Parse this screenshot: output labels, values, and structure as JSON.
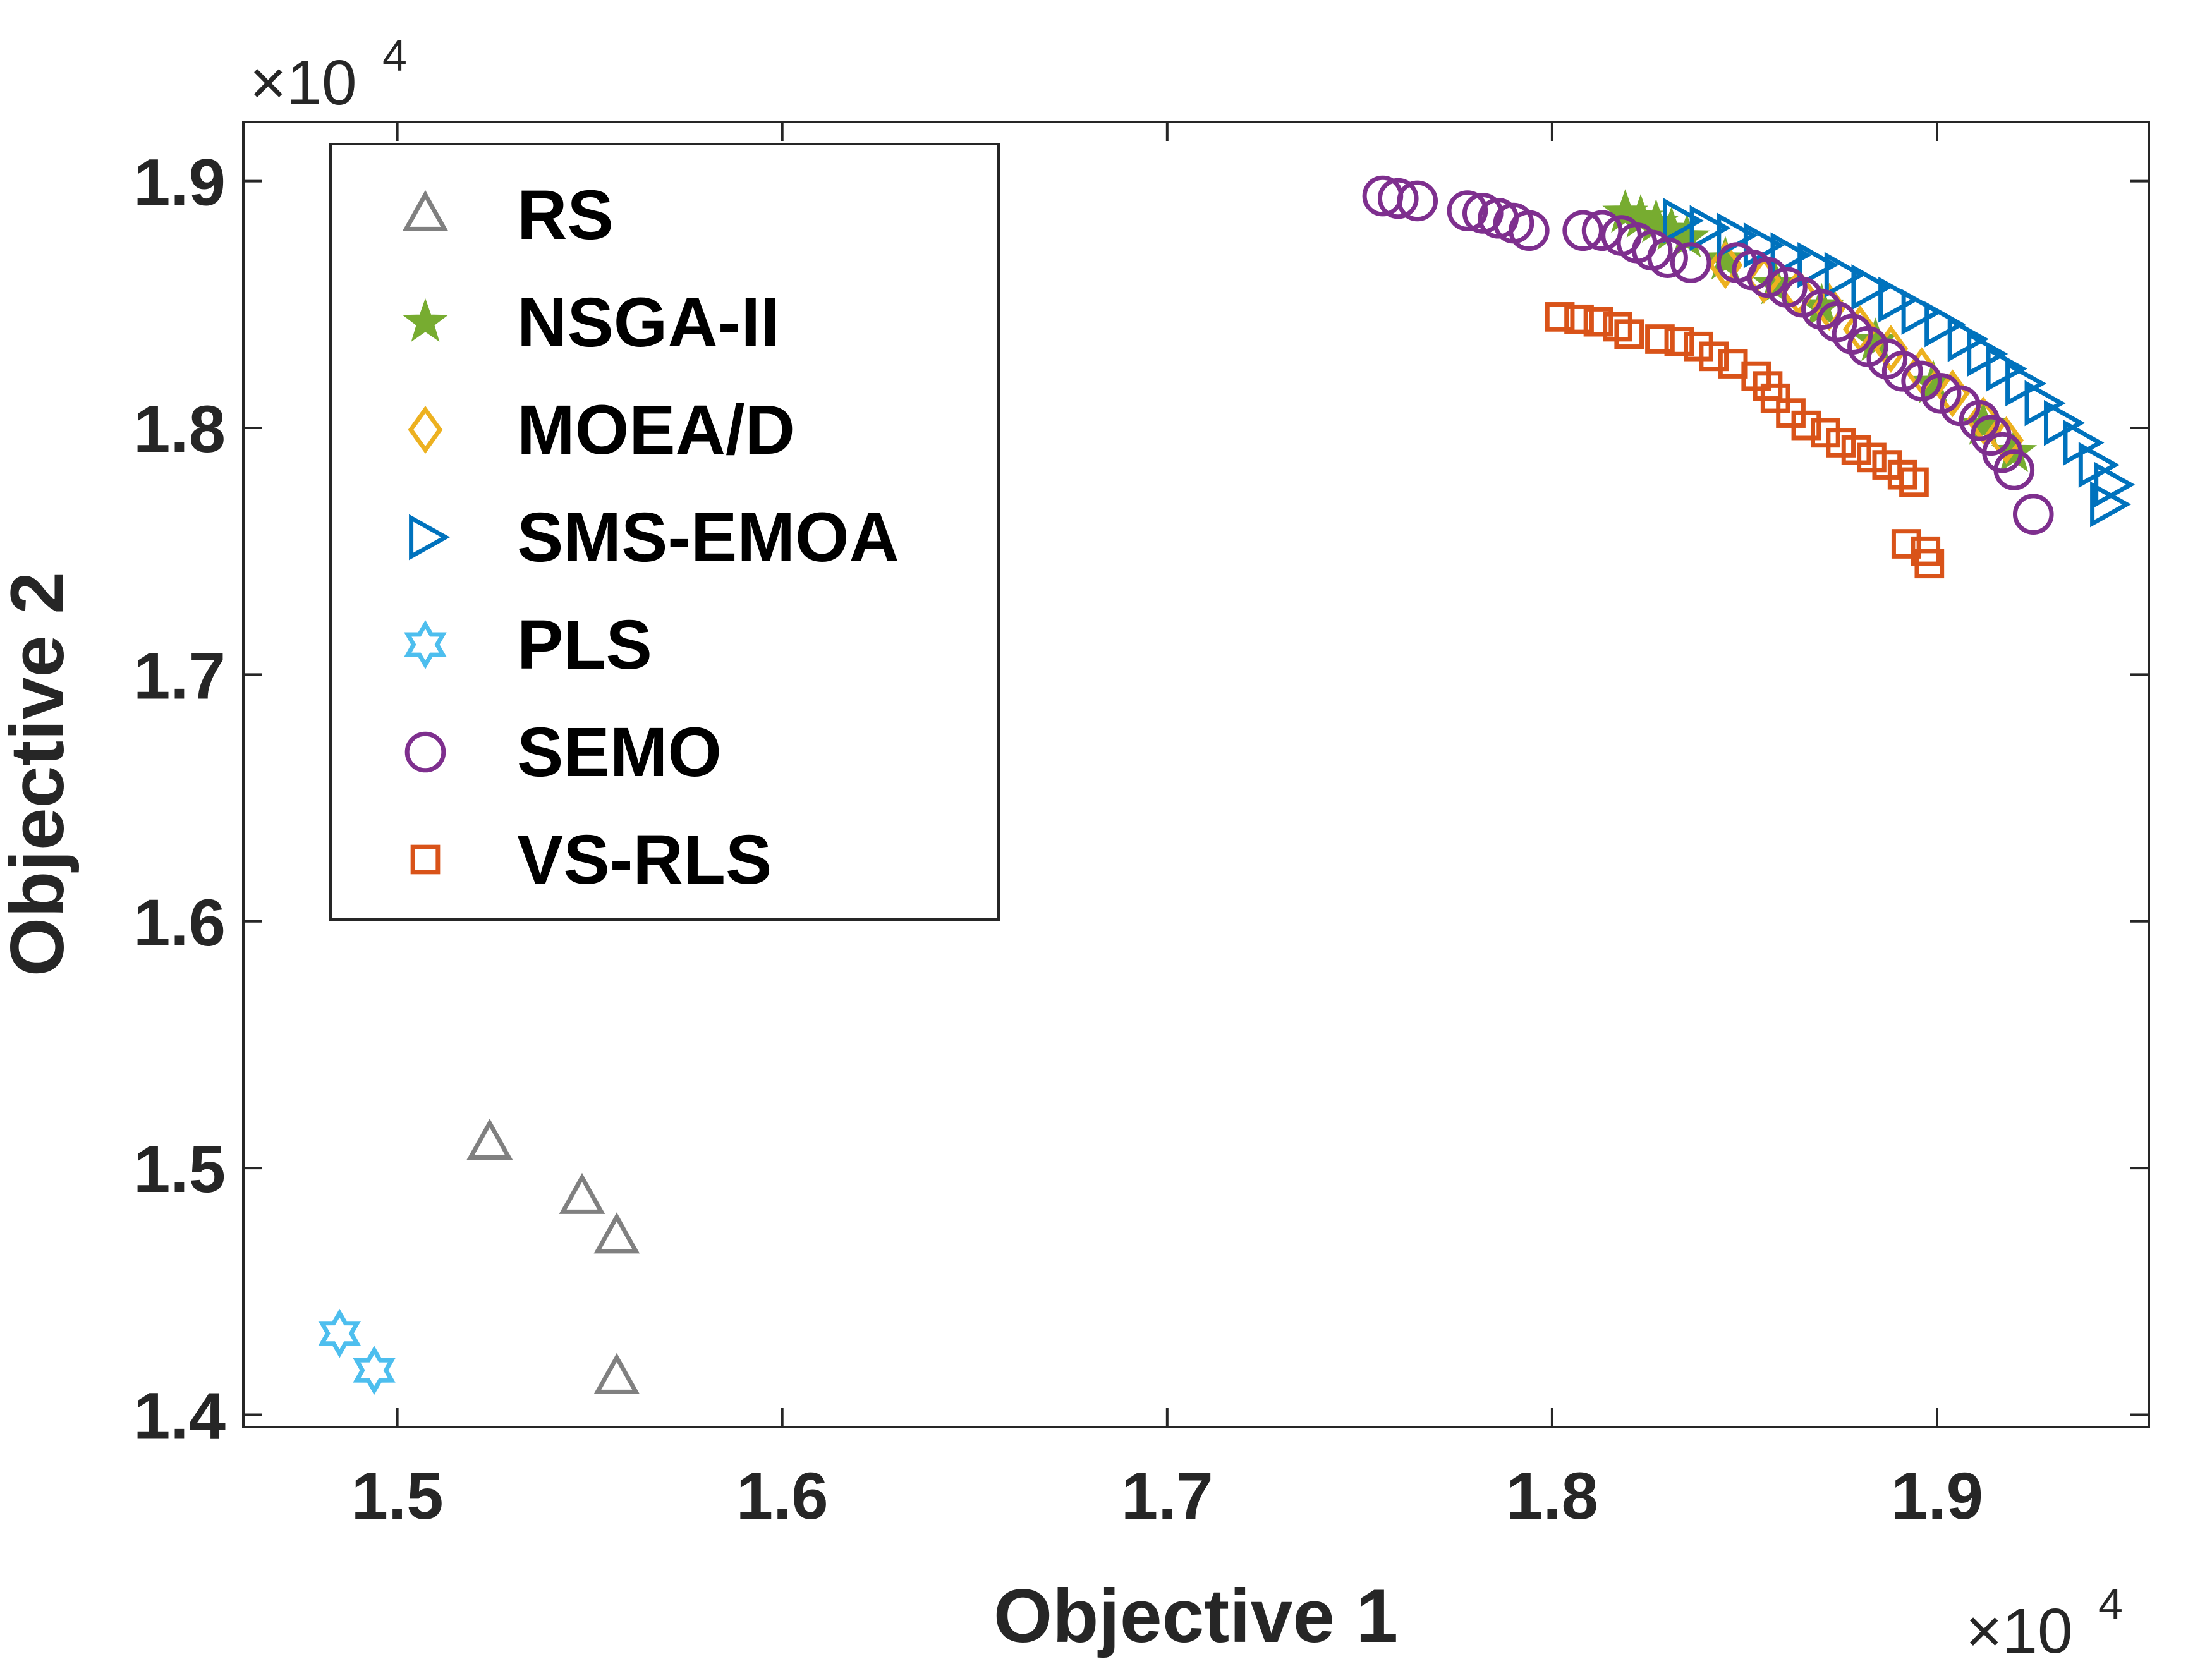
{
  "chart_data": {
    "type": "scatter",
    "xlabel": "Objective 1",
    "ylabel": "Objective 2",
    "x_multiplier": "×10",
    "x_multiplier_exp": "4",
    "y_multiplier": "×10",
    "y_multiplier_exp": "4",
    "xlim": [
      1.46,
      1.955
    ],
    "ylim": [
      1.395,
      1.924
    ],
    "xticks": [
      {
        "v": 1.5,
        "label": "1.5"
      },
      {
        "v": 1.6,
        "label": "1.6"
      },
      {
        "v": 1.7,
        "label": "1.7"
      },
      {
        "v": 1.8,
        "label": "1.8"
      },
      {
        "v": 1.9,
        "label": "1.9"
      }
    ],
    "yticks": [
      {
        "v": 1.4,
        "label": "1.4"
      },
      {
        "v": 1.5,
        "label": "1.5"
      },
      {
        "v": 1.6,
        "label": "1.6"
      },
      {
        "v": 1.7,
        "label": "1.7"
      },
      {
        "v": 1.8,
        "label": "1.8"
      },
      {
        "v": 1.9,
        "label": "1.9"
      }
    ],
    "grid": false,
    "legend_position": "top-left",
    "series": [
      {
        "name": "RS",
        "marker": "triangle-up",
        "color": "#808080",
        "points": [
          [
            1.524,
            1.51
          ],
          [
            1.548,
            1.488
          ],
          [
            1.557,
            1.472
          ],
          [
            1.557,
            1.415
          ]
        ]
      },
      {
        "name": "NSGA-II",
        "marker": "star",
        "color": "#77AC30",
        "points": [
          [
            1.819,
            1.887
          ],
          [
            1.823,
            1.885
          ],
          [
            1.827,
            1.883
          ],
          [
            1.831,
            1.88
          ],
          [
            1.835,
            1.877
          ],
          [
            1.845,
            1.868
          ],
          [
            1.858,
            1.858
          ],
          [
            1.87,
            1.849
          ],
          [
            1.884,
            1.835
          ],
          [
            1.899,
            1.818
          ],
          [
            1.912,
            1.801
          ],
          [
            1.92,
            1.79
          ]
        ]
      },
      {
        "name": "MOEA/D",
        "marker": "diamond",
        "color": "#EDB120",
        "points": [
          [
            1.845,
            1.866
          ],
          [
            1.855,
            1.86
          ],
          [
            1.864,
            1.855
          ],
          [
            1.872,
            1.849
          ],
          [
            1.88,
            1.84
          ],
          [
            1.888,
            1.832
          ],
          [
            1.896,
            1.823
          ],
          [
            1.904,
            1.814
          ],
          [
            1.912,
            1.803
          ],
          [
            1.918,
            1.795
          ]
        ]
      },
      {
        "name": "SMS-EMOA",
        "marker": "triangle-right",
        "color": "#0072BD",
        "points": [
          [
            1.833,
            1.884
          ],
          [
            1.84,
            1.881
          ],
          [
            1.847,
            1.878
          ],
          [
            1.854,
            1.874
          ],
          [
            1.861,
            1.87
          ],
          [
            1.868,
            1.866
          ],
          [
            1.875,
            1.862
          ],
          [
            1.882,
            1.857
          ],
          [
            1.889,
            1.852
          ],
          [
            1.895,
            1.847
          ],
          [
            1.901,
            1.842
          ],
          [
            1.907,
            1.836
          ],
          [
            1.912,
            1.83
          ],
          [
            1.917,
            1.824
          ],
          [
            1.922,
            1.818
          ],
          [
            1.927,
            1.81
          ],
          [
            1.932,
            1.802
          ],
          [
            1.937,
            1.794
          ],
          [
            1.941,
            1.785
          ],
          [
            1.945,
            1.777
          ],
          [
            1.944,
            1.769
          ]
        ]
      },
      {
        "name": "PLS",
        "marker": "hexagram",
        "color": "#4DBEEE",
        "points": [
          [
            1.485,
            1.433
          ],
          [
            1.494,
            1.418
          ]
        ]
      },
      {
        "name": "SEMO",
        "marker": "circle",
        "color": "#7E2F8E",
        "points": [
          [
            1.756,
            1.894
          ],
          [
            1.76,
            1.893
          ],
          [
            1.765,
            1.892
          ],
          [
            1.778,
            1.888
          ],
          [
            1.782,
            1.887
          ],
          [
            1.786,
            1.885
          ],
          [
            1.79,
            1.883
          ],
          [
            1.794,
            1.88
          ],
          [
            1.808,
            1.88
          ],
          [
            1.813,
            1.88
          ],
          [
            1.818,
            1.878
          ],
          [
            1.822,
            1.875
          ],
          [
            1.826,
            1.872
          ],
          [
            1.83,
            1.869
          ],
          [
            1.836,
            1.867
          ],
          [
            1.848,
            1.867
          ],
          [
            1.852,
            1.864
          ],
          [
            1.856,
            1.861
          ],
          [
            1.861,
            1.857
          ],
          [
            1.865,
            1.853
          ],
          [
            1.87,
            1.848
          ],
          [
            1.874,
            1.843
          ],
          [
            1.878,
            1.838
          ],
          [
            1.882,
            1.833
          ],
          [
            1.887,
            1.828
          ],
          [
            1.891,
            1.823
          ],
          [
            1.896,
            1.819
          ],
          [
            1.901,
            1.814
          ],
          [
            1.906,
            1.809
          ],
          [
            1.911,
            1.803
          ],
          [
            1.914,
            1.797
          ],
          [
            1.917,
            1.79
          ],
          [
            1.92,
            1.783
          ],
          [
            1.925,
            1.765
          ]
        ]
      },
      {
        "name": "VS-RLS",
        "marker": "square",
        "color": "#D95319",
        "points": [
          [
            1.802,
            1.845
          ],
          [
            1.807,
            1.844
          ],
          [
            1.812,
            1.843
          ],
          [
            1.817,
            1.841
          ],
          [
            1.82,
            1.838
          ],
          [
            1.828,
            1.836
          ],
          [
            1.833,
            1.835
          ],
          [
            1.838,
            1.833
          ],
          [
            1.842,
            1.829
          ],
          [
            1.847,
            1.826
          ],
          [
            1.853,
            1.821
          ],
          [
            1.856,
            1.817
          ],
          [
            1.858,
            1.812
          ],
          [
            1.862,
            1.806
          ],
          [
            1.866,
            1.801
          ],
          [
            1.871,
            1.798
          ],
          [
            1.875,
            1.794
          ],
          [
            1.879,
            1.791
          ],
          [
            1.883,
            1.788
          ],
          [
            1.887,
            1.785
          ],
          [
            1.891,
            1.781
          ],
          [
            1.894,
            1.778
          ],
          [
            1.892,
            1.753
          ],
          [
            1.897,
            1.75
          ],
          [
            1.898,
            1.745
          ]
        ]
      }
    ]
  }
}
